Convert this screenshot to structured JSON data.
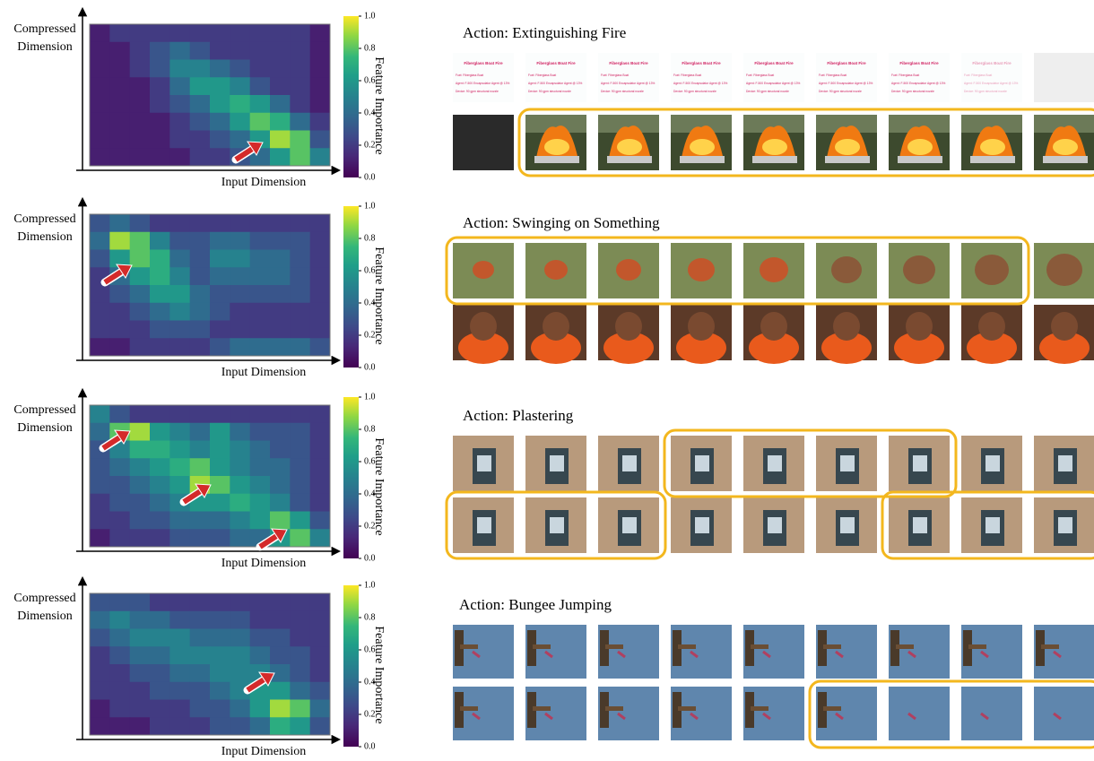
{
  "chart_data": [
    {
      "type": "heatmap",
      "cmap": "viridis",
      "y_label": [
        "Compressed",
        "Dimension"
      ],
      "x_label": "Input Dimension",
      "colorbar_label": "Feature Importance",
      "clim": [
        0,
        1
      ],
      "cticks": [
        {
          "value": 0,
          "label": "0.0"
        },
        0.2,
        0.4,
        0.6,
        0.8,
        {
          "value": 1,
          "label": "1.0"
        }
      ],
      "values": [
        [
          0.1,
          0.2,
          0.2,
          0.2,
          0.2,
          0.2,
          0.2,
          0.2,
          0.2,
          0.2,
          0.2,
          0.1
        ],
        [
          0.1,
          0.1,
          0.2,
          0.3,
          0.4,
          0.3,
          0.2,
          0.2,
          0.2,
          0.2,
          0.2,
          0.1
        ],
        [
          0.1,
          0.1,
          0.2,
          0.3,
          0.5,
          0.5,
          0.4,
          0.3,
          0.2,
          0.2,
          0.2,
          0.1
        ],
        [
          0.1,
          0.1,
          0.1,
          0.2,
          0.4,
          0.6,
          0.6,
          0.5,
          0.3,
          0.2,
          0.2,
          0.1
        ],
        [
          0.1,
          0.1,
          0.1,
          0.2,
          0.3,
          0.4,
          0.6,
          0.7,
          0.6,
          0.4,
          0.2,
          0.1
        ],
        [
          0.1,
          0.1,
          0.1,
          0.1,
          0.2,
          0.3,
          0.4,
          0.6,
          0.8,
          0.7,
          0.4,
          0.2
        ],
        [
          0.1,
          0.1,
          0.1,
          0.1,
          0.2,
          0.2,
          0.3,
          0.4,
          0.6,
          0.9,
          0.8,
          0.3
        ],
        [
          0.1,
          0.1,
          0.1,
          0.1,
          0.1,
          0.2,
          0.2,
          0.3,
          0.4,
          0.6,
          0.8,
          0.5
        ]
      ]
    },
    {
      "type": "heatmap",
      "cmap": "viridis",
      "y_label": [
        "Compressed",
        "Dimension"
      ],
      "x_label": "Input Dimension",
      "colorbar_label": "Feature Importance",
      "clim": [
        0,
        1
      ],
      "cticks": [
        {
          "value": 0,
          "label": "0.0"
        },
        0.2,
        0.4,
        0.6,
        0.8,
        {
          "value": 1,
          "label": "1.0"
        }
      ],
      "values": [
        [
          0.3,
          0.4,
          0.3,
          0.2,
          0.2,
          0.2,
          0.2,
          0.2,
          0.2,
          0.2,
          0.2,
          0.2
        ],
        [
          0.4,
          0.9,
          0.8,
          0.5,
          0.3,
          0.3,
          0.4,
          0.4,
          0.3,
          0.3,
          0.3,
          0.2
        ],
        [
          0.3,
          0.6,
          0.8,
          0.7,
          0.4,
          0.3,
          0.5,
          0.5,
          0.4,
          0.4,
          0.3,
          0.2
        ],
        [
          0.2,
          0.4,
          0.6,
          0.7,
          0.5,
          0.3,
          0.4,
          0.4,
          0.4,
          0.4,
          0.3,
          0.2
        ],
        [
          0.2,
          0.3,
          0.4,
          0.6,
          0.6,
          0.4,
          0.3,
          0.3,
          0.3,
          0.3,
          0.3,
          0.2
        ],
        [
          0.2,
          0.2,
          0.3,
          0.4,
          0.5,
          0.4,
          0.3,
          0.2,
          0.2,
          0.2,
          0.2,
          0.2
        ],
        [
          0.2,
          0.2,
          0.2,
          0.3,
          0.3,
          0.3,
          0.2,
          0.2,
          0.2,
          0.2,
          0.2,
          0.2
        ],
        [
          0.1,
          0.1,
          0.2,
          0.2,
          0.2,
          0.2,
          0.3,
          0.4,
          0.4,
          0.4,
          0.4,
          0.3
        ]
      ]
    },
    {
      "type": "heatmap",
      "cmap": "viridis",
      "y_label": [
        "Compressed",
        "Dimension"
      ],
      "x_label": "Input Dimension",
      "colorbar_label": "Feature Importance",
      "clim": [
        0,
        1
      ],
      "cticks": [
        {
          "value": 0,
          "label": "0.0"
        },
        0.2,
        0.4,
        0.6,
        0.8,
        {
          "value": 1,
          "label": "1.0"
        }
      ],
      "values": [
        [
          0.5,
          0.3,
          0.2,
          0.2,
          0.2,
          0.2,
          0.2,
          0.2,
          0.2,
          0.2,
          0.2,
          0.2
        ],
        [
          0.4,
          0.8,
          0.9,
          0.6,
          0.5,
          0.4,
          0.6,
          0.4,
          0.3,
          0.3,
          0.3,
          0.2
        ],
        [
          0.3,
          0.5,
          0.7,
          0.7,
          0.6,
          0.5,
          0.6,
          0.5,
          0.4,
          0.3,
          0.3,
          0.2
        ],
        [
          0.3,
          0.4,
          0.5,
          0.6,
          0.7,
          0.8,
          0.6,
          0.5,
          0.4,
          0.4,
          0.3,
          0.2
        ],
        [
          0.3,
          0.3,
          0.4,
          0.5,
          0.6,
          0.9,
          0.8,
          0.6,
          0.5,
          0.4,
          0.3,
          0.2
        ],
        [
          0.2,
          0.3,
          0.3,
          0.4,
          0.5,
          0.6,
          0.6,
          0.7,
          0.6,
          0.5,
          0.3,
          0.2
        ],
        [
          0.2,
          0.2,
          0.3,
          0.3,
          0.4,
          0.4,
          0.4,
          0.5,
          0.6,
          0.8,
          0.6,
          0.3
        ],
        [
          0.1,
          0.2,
          0.2,
          0.2,
          0.3,
          0.3,
          0.3,
          0.4,
          0.4,
          0.6,
          0.8,
          0.5
        ]
      ]
    },
    {
      "type": "heatmap",
      "cmap": "viridis",
      "y_label": [
        "Compressed",
        "Dimension"
      ],
      "x_label": "Input Dimension",
      "colorbar_label": "Feature Importance",
      "clim": [
        0,
        1
      ],
      "cticks": [
        {
          "value": 0,
          "label": "0.0"
        },
        0.2,
        0.4,
        0.6,
        0.8,
        {
          "value": 1,
          "label": "1.0"
        }
      ],
      "values": [
        [
          0.3,
          0.3,
          0.3,
          0.2,
          0.2,
          0.2,
          0.2,
          0.2,
          0.2,
          0.2,
          0.2,
          0.2
        ],
        [
          0.4,
          0.5,
          0.4,
          0.4,
          0.3,
          0.3,
          0.3,
          0.3,
          0.2,
          0.2,
          0.2,
          0.2
        ],
        [
          0.3,
          0.4,
          0.5,
          0.5,
          0.5,
          0.4,
          0.4,
          0.4,
          0.3,
          0.3,
          0.2,
          0.2
        ],
        [
          0.2,
          0.3,
          0.4,
          0.4,
          0.5,
          0.5,
          0.5,
          0.5,
          0.4,
          0.3,
          0.3,
          0.2
        ],
        [
          0.2,
          0.2,
          0.3,
          0.3,
          0.4,
          0.4,
          0.5,
          0.5,
          0.5,
          0.4,
          0.3,
          0.2
        ],
        [
          0.2,
          0.2,
          0.2,
          0.3,
          0.3,
          0.3,
          0.4,
          0.5,
          0.6,
          0.6,
          0.4,
          0.3
        ],
        [
          0.1,
          0.2,
          0.2,
          0.2,
          0.2,
          0.3,
          0.3,
          0.4,
          0.6,
          0.9,
          0.8,
          0.4
        ],
        [
          0.1,
          0.1,
          0.1,
          0.2,
          0.2,
          0.2,
          0.3,
          0.3,
          0.4,
          0.7,
          0.6,
          0.3
        ]
      ]
    }
  ],
  "actions": [
    {
      "title": "Action: Extinguishing Fire",
      "card": {
        "heading": "Fiberglass Boat Fire",
        "lines": [
          "Fuel: Fiberglass Boat",
          "Agent: F-500 Encapsulator Agent @ 13%",
          "Device: 90 gpm structural nozzle"
        ]
      }
    },
    {
      "title": "Action: Swinging on Something"
    },
    {
      "title": "Action: Plastering"
    },
    {
      "title": "Action: Bungee Jumping"
    }
  ]
}
